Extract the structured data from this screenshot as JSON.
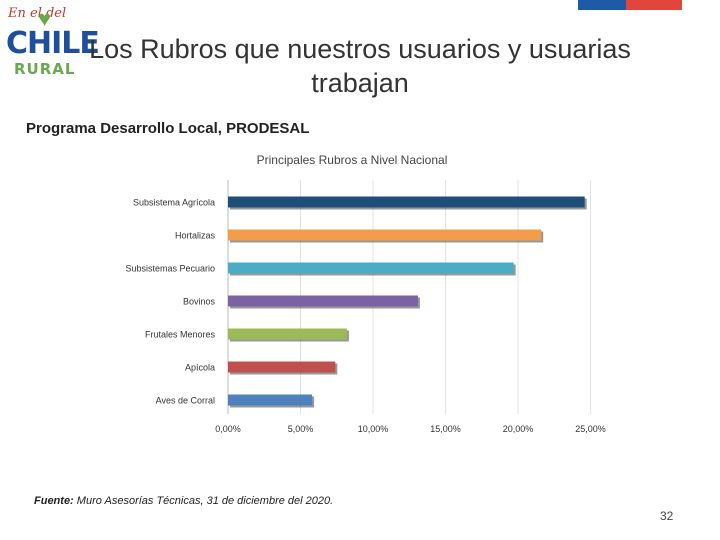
{
  "header": {
    "logo_top": "En el del",
    "logo_main": "CHILE",
    "logo_bottom": "RURAL",
    "title": "Los Rubros que nuestros usuarios y usuarias trabajan",
    "subtitle": "Programa Desarrollo Local, PRODESAL"
  },
  "colors": {
    "flag_blue": "#1f5aa6",
    "flag_red": "#e2453c"
  },
  "chart_data": {
    "type": "bar",
    "orientation": "horizontal",
    "title": "Principales Rubros a Nivel Nacional",
    "categories": [
      "Subsistema Agrícola",
      "Hortalizas",
      "Subsistemas Pecuario",
      "Bovinos",
      "Frutales Menores",
      "Apícola",
      "Aves de Corral"
    ],
    "values": [
      24.6,
      21.6,
      19.7,
      13.1,
      8.2,
      7.4,
      5.8
    ],
    "colors": [
      "#1f4e79",
      "#f39c4a",
      "#4bacc6",
      "#7b62a3",
      "#9bbb59",
      "#c0504d",
      "#4f81bd"
    ],
    "x_ticks": [
      "0,00%",
      "5,00%",
      "10,00%",
      "15,00%",
      "20,00%",
      "25,00%"
    ],
    "xlim": [
      0,
      25
    ],
    "grid": true,
    "legend": "none"
  },
  "footer": {
    "source_label": "Fuente:",
    "source_text": " Muro Asesorías Técnicas, 31 de diciembre del 2020.",
    "page_number": "32"
  }
}
